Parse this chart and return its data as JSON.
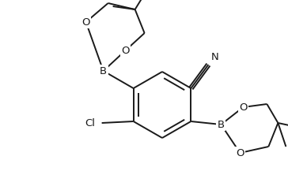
{
  "bg_color": "#ffffff",
  "line_color": "#1a1a1a",
  "line_width": 1.4,
  "font_size": 9.5,
  "figsize": [
    3.64,
    2.36
  ],
  "dpi": 100,
  "xlim": [
    0,
    364
  ],
  "ylim": [
    0,
    236
  ]
}
